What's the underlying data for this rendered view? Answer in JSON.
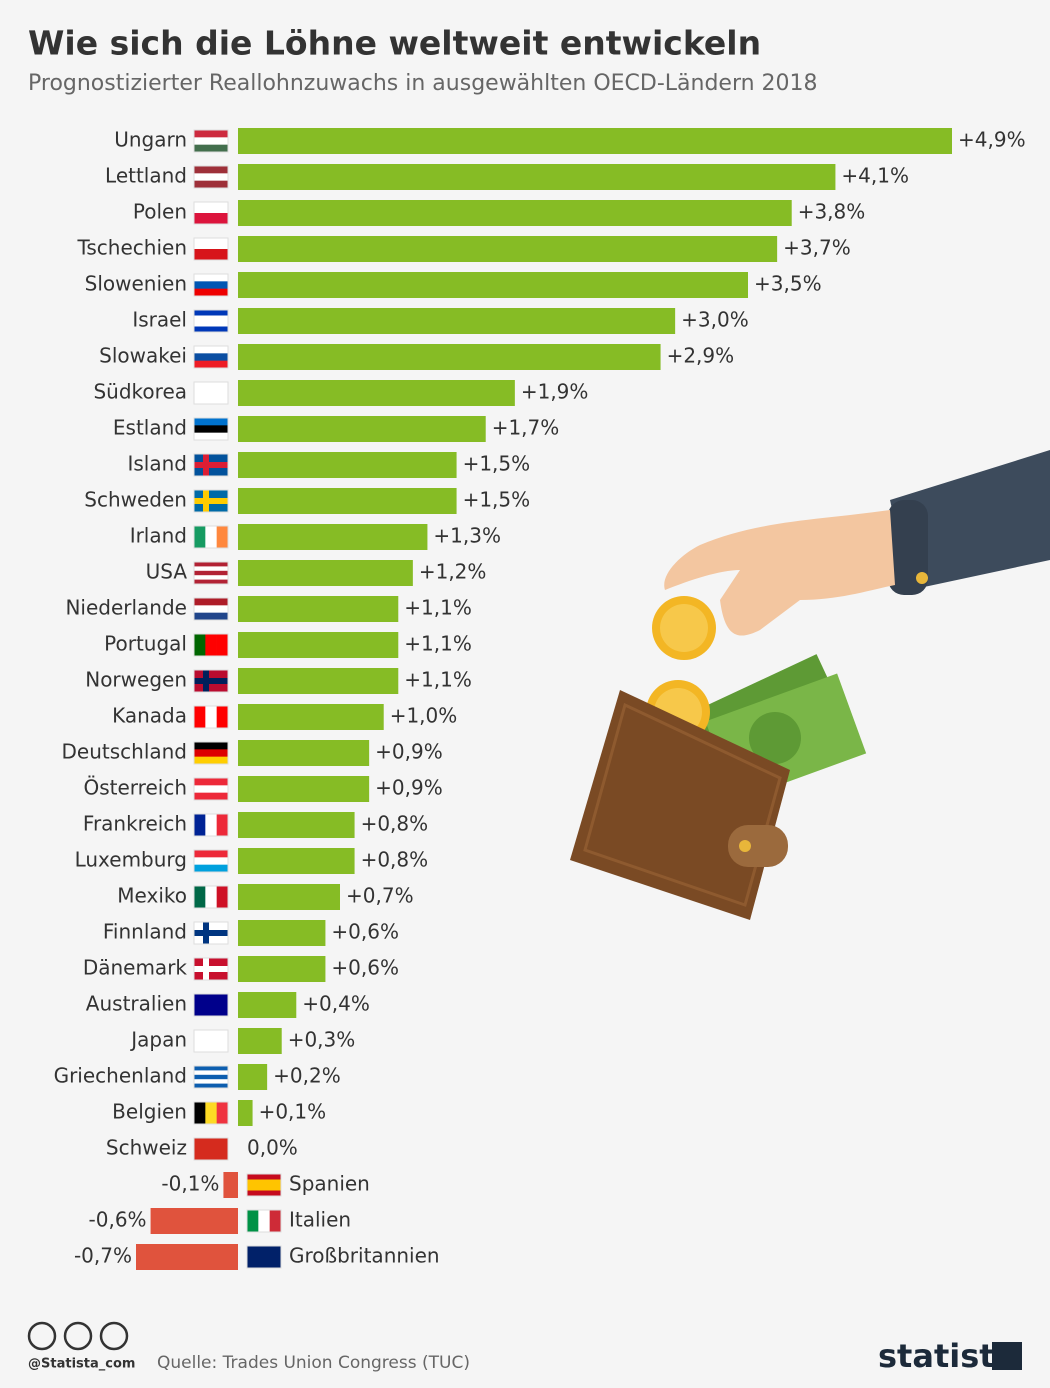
{
  "chart_data": {
    "type": "bar",
    "orientation": "horizontal",
    "title": "Wie sich die Löhne weltweit entwickeln",
    "subtitle": "Prognostizierter Reallohnzuwachs in ausgewählten OECD-Ländern 2018",
    "categories": [
      "Ungarn",
      "Lettland",
      "Polen",
      "Tschechien",
      "Slowenien",
      "Israel",
      "Slowakei",
      "Südkorea",
      "Estland",
      "Island",
      "Schweden",
      "Irland",
      "USA",
      "Niederlande",
      "Portugal",
      "Norwegen",
      "Kanada",
      "Deutschland",
      "Österreich",
      "Frankreich",
      "Luxemburg",
      "Mexiko",
      "Finnland",
      "Dänemark",
      "Australien",
      "Japan",
      "Griechenland",
      "Belgien",
      "Schweiz",
      "Spanien",
      "Italien",
      "Großbritannien"
    ],
    "values": [
      4.9,
      4.1,
      3.8,
      3.7,
      3.5,
      3.0,
      2.9,
      1.9,
      1.7,
      1.5,
      1.5,
      1.3,
      1.2,
      1.1,
      1.1,
      1.1,
      1.0,
      0.9,
      0.9,
      0.8,
      0.8,
      0.7,
      0.6,
      0.6,
      0.4,
      0.3,
      0.2,
      0.1,
      0.0,
      -0.1,
      -0.6,
      -0.7
    ],
    "value_labels": [
      "+4,9%",
      "+4,1%",
      "+3,8%",
      "+3,7%",
      "+3,5%",
      "+3,0%",
      "+2,9%",
      "+1,9%",
      "+1,7%",
      "+1,5%",
      "+1,5%",
      "+1,3%",
      "+1,2%",
      "+1,1%",
      "+1,1%",
      "+1,1%",
      "+1,0%",
      "+0,9%",
      "+0,9%",
      "+0,8%",
      "+0,8%",
      "+0,7%",
      "+0,6%",
      "+0,6%",
      "+0,4%",
      "+0,3%",
      "+0,2%",
      "+0,1%",
      "0,0%",
      "-0,1%",
      "-0,6%",
      "-0,7%"
    ],
    "color": "#86bc25",
    "negative_color": "#e0533d",
    "xlim": [
      -0.7,
      4.9
    ],
    "grid": false
  },
  "footer": {
    "handle": "@Statista_com",
    "source": "Quelle: Trades Union Congress (TUC)",
    "brand": "statista"
  }
}
